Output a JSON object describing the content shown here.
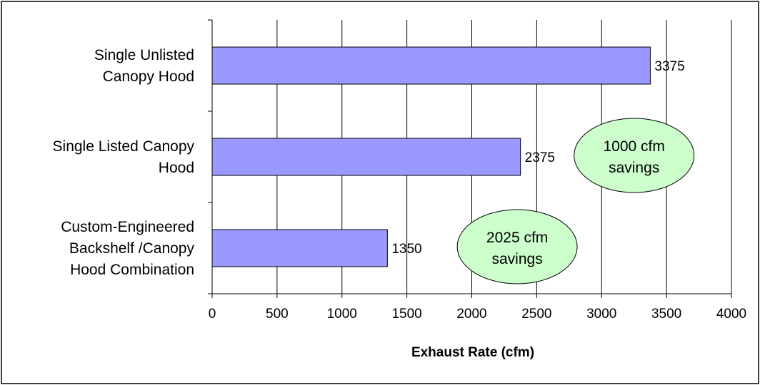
{
  "chart_data": {
    "type": "bar",
    "orientation": "horizontal",
    "categories": [
      [
        "Single Unlisted",
        "Canopy Hood"
      ],
      [
        "Single Listed Canopy",
        "Hood"
      ],
      [
        "Custom-Engineered",
        "Backshelf /Canopy",
        "Hood Combination"
      ]
    ],
    "values": [
      3375,
      2375,
      1350
    ],
    "data_labels": [
      "3375",
      "2375",
      "1350"
    ],
    "title": "",
    "xlabel": "Exhaust Rate (cfm)",
    "ylabel": "",
    "xlim": [
      0,
      4000
    ],
    "x_ticks": [
      0,
      500,
      1000,
      1500,
      2000,
      2500,
      3000,
      3500,
      4000
    ],
    "grid": "vertical",
    "legend": "none",
    "annotations": [
      {
        "lines": [
          "1000 cfm",
          "savings"
        ],
        "anchor_value": 3250,
        "row": 1
      },
      {
        "lines": [
          "2025 cfm",
          "savings"
        ],
        "anchor_value": 2350,
        "row": 2
      }
    ],
    "colors": {
      "bar_fill": "#9999FF",
      "bar_stroke": "#000000",
      "annotation_fill": "#CCFFCC",
      "annotation_stroke": "#000000",
      "grid": "#000000"
    }
  }
}
